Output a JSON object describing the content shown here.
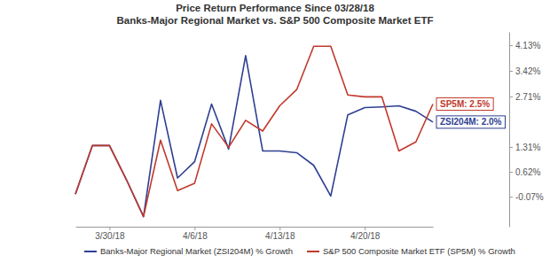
{
  "chart_data": {
    "type": "line",
    "title": "Price Return Performance Since 03/28/18",
    "subtitle": "Banks-Major Regional Market vs. S&P 500 Composite Market ETF",
    "categories": [
      null,
      null,
      "3/30/18",
      null,
      null,
      null,
      null,
      "4/6/18",
      null,
      null,
      null,
      null,
      "4/13/18",
      null,
      null,
      null,
      null,
      "4/20/18",
      null,
      null,
      null,
      null
    ],
    "series": [
      {
        "name": "Banks-Major Regional Market (ZSI204M) % Growth",
        "color": "#2e3f92",
        "values": [
          0,
          1.35,
          1.35,
          0.4,
          -0.62,
          2.6,
          0.45,
          0.9,
          2.5,
          1.25,
          3.84,
          1.2,
          1.2,
          1.15,
          0.8,
          -0.05,
          2.2,
          2.4,
          2.42,
          2.45,
          2.3,
          2.0
        ]
      },
      {
        "name": "S&P 500 Composite Market ETF (SP5M) % Growth",
        "color": "#c0392b",
        "values": [
          0,
          1.35,
          1.35,
          0.4,
          -0.62,
          1.5,
          0.1,
          0.3,
          1.95,
          1.3,
          2.05,
          1.75,
          2.45,
          2.9,
          4.1,
          4.1,
          2.75,
          2.7,
          2.7,
          1.2,
          1.45,
          2.5
        ]
      }
    ],
    "annotations": [
      "ZSI204M: 2.0%",
      "SP5M: 2.5%"
    ],
    "ylim": [
      -0.9,
      4.5
    ],
    "yticks": [
      {
        "value": -0.07,
        "label": "-0.07%"
      },
      {
        "value": 0.62,
        "label": "0.62%"
      },
      {
        "value": 1.31,
        "label": "1.31%"
      },
      {
        "value": 2.71,
        "label": "2.71%"
      },
      {
        "value": 3.42,
        "label": "3.42%"
      },
      {
        "value": 4.13,
        "label": "4.13%"
      }
    ],
    "grid": false,
    "legend": "bottom"
  }
}
